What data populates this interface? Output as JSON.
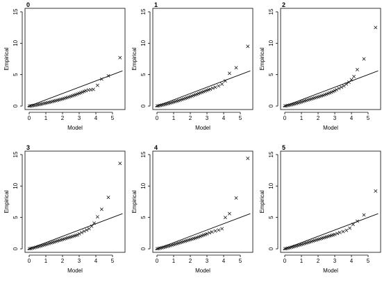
{
  "chart_data": [
    {
      "type": "scatter",
      "title": "0",
      "xlabel": "Model",
      "ylabel": "Empirical",
      "xlim": [
        0,
        5.5
      ],
      "ylim": [
        0,
        15
      ],
      "xticks": [
        0,
        1,
        2,
        3,
        4,
        5
      ],
      "yticks": [
        0,
        5,
        10,
        15
      ],
      "marker": "x",
      "grid": false,
      "reference_line": {
        "slope": 1,
        "intercept": 0
      },
      "points": [
        [
          0.02,
          0.01
        ],
        [
          0.1,
          0.03
        ],
        [
          0.2,
          0.07
        ],
        [
          0.3,
          0.11
        ],
        [
          0.4,
          0.15
        ],
        [
          0.5,
          0.2
        ],
        [
          0.6,
          0.25
        ],
        [
          0.7,
          0.3
        ],
        [
          0.8,
          0.36
        ],
        [
          0.9,
          0.42
        ],
        [
          1.0,
          0.48
        ],
        [
          1.1,
          0.54
        ],
        [
          1.2,
          0.6
        ],
        [
          1.3,
          0.66
        ],
        [
          1.4,
          0.73
        ],
        [
          1.5,
          0.8
        ],
        [
          1.6,
          0.86
        ],
        [
          1.7,
          0.93
        ],
        [
          1.8,
          1.0
        ],
        [
          1.9,
          1.07
        ],
        [
          2.0,
          1.14
        ],
        [
          2.1,
          1.22
        ],
        [
          2.2,
          1.3
        ],
        [
          2.3,
          1.38
        ],
        [
          2.4,
          1.46
        ],
        [
          2.5,
          1.55
        ],
        [
          2.6,
          1.64
        ],
        [
          2.7,
          1.73
        ],
        [
          2.8,
          1.82
        ],
        [
          2.9,
          1.92
        ],
        [
          3.0,
          2.02
        ],
        [
          3.1,
          2.12
        ],
        [
          3.2,
          2.23
        ],
        [
          3.3,
          2.34
        ],
        [
          3.4,
          2.45
        ],
        [
          3.55,
          2.55
        ],
        [
          3.7,
          2.6
        ],
        [
          3.85,
          2.65
        ],
        [
          4.1,
          3.3
        ],
        [
          4.35,
          4.3
        ],
        [
          4.75,
          4.8
        ],
        [
          5.45,
          7.7
        ]
      ]
    },
    {
      "type": "scatter",
      "title": "1",
      "xlabel": "Model",
      "ylabel": "Empirical",
      "xlim": [
        0,
        5.5
      ],
      "ylim": [
        0,
        15
      ],
      "xticks": [
        0,
        1,
        2,
        3,
        4,
        5
      ],
      "yticks": [
        0,
        5,
        10,
        15
      ],
      "marker": "x",
      "grid": false,
      "reference_line": {
        "slope": 1,
        "intercept": 0
      },
      "points": [
        [
          0.02,
          0.02
        ],
        [
          0.1,
          0.05
        ],
        [
          0.2,
          0.1
        ],
        [
          0.3,
          0.16
        ],
        [
          0.4,
          0.22
        ],
        [
          0.5,
          0.28
        ],
        [
          0.6,
          0.35
        ],
        [
          0.7,
          0.42
        ],
        [
          0.8,
          0.49
        ],
        [
          0.9,
          0.56
        ],
        [
          1.0,
          0.64
        ],
        [
          1.1,
          0.72
        ],
        [
          1.2,
          0.8
        ],
        [
          1.3,
          0.88
        ],
        [
          1.4,
          0.96
        ],
        [
          1.5,
          1.05
        ],
        [
          1.6,
          1.14
        ],
        [
          1.7,
          1.22
        ],
        [
          1.8,
          1.31
        ],
        [
          1.9,
          1.4
        ],
        [
          2.0,
          1.5
        ],
        [
          2.1,
          1.6
        ],
        [
          2.2,
          1.7
        ],
        [
          2.3,
          1.8
        ],
        [
          2.4,
          1.9
        ],
        [
          2.5,
          2.0
        ],
        [
          2.6,
          2.1
        ],
        [
          2.7,
          2.2
        ],
        [
          2.8,
          2.3
        ],
        [
          2.9,
          2.4
        ],
        [
          3.0,
          2.5
        ],
        [
          3.1,
          2.6
        ],
        [
          3.2,
          2.7
        ],
        [
          3.35,
          2.85
        ],
        [
          3.5,
          3.0
        ],
        [
          3.7,
          3.2
        ],
        [
          3.9,
          3.5
        ],
        [
          4.1,
          4.0
        ],
        [
          4.35,
          5.2
        ],
        [
          4.75,
          6.1
        ],
        [
          5.45,
          9.5
        ]
      ]
    },
    {
      "type": "scatter",
      "title": "2",
      "xlabel": "Model",
      "ylabel": "Empirical",
      "xlim": [
        0,
        5.5
      ],
      "ylim": [
        0,
        15
      ],
      "xticks": [
        0,
        1,
        2,
        3,
        4,
        5
      ],
      "yticks": [
        0,
        5,
        10,
        15
      ],
      "marker": "x",
      "grid": false,
      "reference_line": {
        "slope": 1,
        "intercept": 0
      },
      "points": [
        [
          0.02,
          0.02
        ],
        [
          0.1,
          0.05
        ],
        [
          0.2,
          0.1
        ],
        [
          0.3,
          0.16
        ],
        [
          0.4,
          0.22
        ],
        [
          0.5,
          0.28
        ],
        [
          0.6,
          0.35
        ],
        [
          0.7,
          0.42
        ],
        [
          0.8,
          0.5
        ],
        [
          0.9,
          0.58
        ],
        [
          1.0,
          0.66
        ],
        [
          1.1,
          0.74
        ],
        [
          1.2,
          0.82
        ],
        [
          1.3,
          0.9
        ],
        [
          1.4,
          0.98
        ],
        [
          1.5,
          1.06
        ],
        [
          1.6,
          1.14
        ],
        [
          1.7,
          1.22
        ],
        [
          1.8,
          1.3
        ],
        [
          1.9,
          1.38
        ],
        [
          2.0,
          1.46
        ],
        [
          2.1,
          1.54
        ],
        [
          2.2,
          1.62
        ],
        [
          2.3,
          1.7
        ],
        [
          2.4,
          1.8
        ],
        [
          2.5,
          1.9
        ],
        [
          2.6,
          2.0
        ],
        [
          2.7,
          2.1
        ],
        [
          2.8,
          2.2
        ],
        [
          2.9,
          2.32
        ],
        [
          3.0,
          2.45
        ],
        [
          3.1,
          2.6
        ],
        [
          3.25,
          2.8
        ],
        [
          3.4,
          3.0
        ],
        [
          3.55,
          3.2
        ],
        [
          3.7,
          3.5
        ],
        [
          3.85,
          3.8
        ],
        [
          4.0,
          4.2
        ],
        [
          4.15,
          4.7
        ],
        [
          4.35,
          5.8
        ],
        [
          4.75,
          7.5
        ],
        [
          5.45,
          12.5
        ]
      ]
    },
    {
      "type": "scatter",
      "title": "3",
      "xlabel": "Model",
      "ylabel": "Empirical",
      "xlim": [
        0,
        5.5
      ],
      "ylim": [
        0,
        15
      ],
      "xticks": [
        0,
        1,
        2,
        3,
        4,
        5
      ],
      "yticks": [
        0,
        5,
        10,
        15
      ],
      "marker": "x",
      "grid": false,
      "reference_line": {
        "slope": 1,
        "intercept": 0
      },
      "points": [
        [
          0.02,
          0.02
        ],
        [
          0.1,
          0.06
        ],
        [
          0.2,
          0.12
        ],
        [
          0.3,
          0.18
        ],
        [
          0.4,
          0.25
        ],
        [
          0.5,
          0.32
        ],
        [
          0.6,
          0.39
        ],
        [
          0.7,
          0.46
        ],
        [
          0.8,
          0.54
        ],
        [
          0.9,
          0.62
        ],
        [
          1.0,
          0.7
        ],
        [
          1.1,
          0.78
        ],
        [
          1.2,
          0.86
        ],
        [
          1.3,
          0.94
        ],
        [
          1.4,
          1.02
        ],
        [
          1.5,
          1.1
        ],
        [
          1.6,
          1.18
        ],
        [
          1.7,
          1.26
        ],
        [
          1.8,
          1.34
        ],
        [
          1.9,
          1.42
        ],
        [
          2.0,
          1.5
        ],
        [
          2.1,
          1.58
        ],
        [
          2.2,
          1.66
        ],
        [
          2.3,
          1.74
        ],
        [
          2.4,
          1.82
        ],
        [
          2.5,
          1.9
        ],
        [
          2.6,
          1.98
        ],
        [
          2.7,
          2.06
        ],
        [
          2.8,
          2.14
        ],
        [
          2.9,
          2.22
        ],
        [
          3.0,
          2.4
        ],
        [
          3.15,
          2.6
        ],
        [
          3.3,
          2.8
        ],
        [
          3.45,
          3.0
        ],
        [
          3.6,
          3.2
        ],
        [
          3.75,
          3.6
        ],
        [
          3.9,
          4.1
        ],
        [
          4.1,
          5.1
        ],
        [
          4.35,
          6.3
        ],
        [
          4.75,
          8.2
        ],
        [
          5.45,
          13.6
        ]
      ]
    },
    {
      "type": "scatter",
      "title": "4",
      "xlabel": "Model",
      "ylabel": "Empirical",
      "xlim": [
        0,
        5.5
      ],
      "ylim": [
        0,
        15
      ],
      "xticks": [
        0,
        1,
        2,
        3,
        4,
        5
      ],
      "yticks": [
        0,
        5,
        10,
        15
      ],
      "marker": "x",
      "grid": false,
      "reference_line": {
        "slope": 1,
        "intercept": 0
      },
      "points": [
        [
          0.02,
          0.02
        ],
        [
          0.1,
          0.06
        ],
        [
          0.2,
          0.12
        ],
        [
          0.3,
          0.18
        ],
        [
          0.4,
          0.24
        ],
        [
          0.5,
          0.31
        ],
        [
          0.6,
          0.38
        ],
        [
          0.7,
          0.45
        ],
        [
          0.8,
          0.52
        ],
        [
          0.9,
          0.6
        ],
        [
          1.0,
          0.68
        ],
        [
          1.1,
          0.76
        ],
        [
          1.2,
          0.84
        ],
        [
          1.3,
          0.92
        ],
        [
          1.4,
          1.0
        ],
        [
          1.5,
          1.08
        ],
        [
          1.6,
          1.16
        ],
        [
          1.7,
          1.24
        ],
        [
          1.8,
          1.32
        ],
        [
          1.9,
          1.4
        ],
        [
          2.0,
          1.48
        ],
        [
          2.1,
          1.56
        ],
        [
          2.2,
          1.64
        ],
        [
          2.3,
          1.72
        ],
        [
          2.4,
          1.8
        ],
        [
          2.5,
          1.9
        ],
        [
          2.6,
          2.0
        ],
        [
          2.7,
          2.1
        ],
        [
          2.8,
          2.2
        ],
        [
          2.9,
          2.3
        ],
        [
          3.0,
          2.4
        ],
        [
          3.15,
          2.55
        ],
        [
          3.3,
          2.7
        ],
        [
          3.5,
          2.85
        ],
        [
          3.7,
          3.0
        ],
        [
          3.9,
          3.2
        ],
        [
          4.1,
          5.0
        ],
        [
          4.35,
          5.6
        ],
        [
          4.75,
          8.1
        ],
        [
          5.45,
          14.4
        ]
      ]
    },
    {
      "type": "scatter",
      "title": "5",
      "xlabel": "Model",
      "ylabel": "Empirical",
      "xlim": [
        0,
        5.5
      ],
      "ylim": [
        0,
        15
      ],
      "xticks": [
        0,
        1,
        2,
        3,
        4,
        5
      ],
      "yticks": [
        0,
        5,
        10,
        15
      ],
      "marker": "x",
      "grid": false,
      "reference_line": {
        "slope": 1,
        "intercept": 0
      },
      "points": [
        [
          0.02,
          0.02
        ],
        [
          0.1,
          0.06
        ],
        [
          0.2,
          0.12
        ],
        [
          0.3,
          0.18
        ],
        [
          0.4,
          0.25
        ],
        [
          0.5,
          0.32
        ],
        [
          0.6,
          0.39
        ],
        [
          0.7,
          0.46
        ],
        [
          0.8,
          0.54
        ],
        [
          0.9,
          0.62
        ],
        [
          1.0,
          0.7
        ],
        [
          1.1,
          0.78
        ],
        [
          1.2,
          0.86
        ],
        [
          1.3,
          0.94
        ],
        [
          1.4,
          1.02
        ],
        [
          1.5,
          1.1
        ],
        [
          1.6,
          1.18
        ],
        [
          1.7,
          1.26
        ],
        [
          1.8,
          1.34
        ],
        [
          1.9,
          1.42
        ],
        [
          2.0,
          1.5
        ],
        [
          2.1,
          1.58
        ],
        [
          2.2,
          1.66
        ],
        [
          2.3,
          1.74
        ],
        [
          2.4,
          1.82
        ],
        [
          2.5,
          1.9
        ],
        [
          2.6,
          1.98
        ],
        [
          2.7,
          2.06
        ],
        [
          2.8,
          2.14
        ],
        [
          2.9,
          2.22
        ],
        [
          3.0,
          2.3
        ],
        [
          3.15,
          2.45
        ],
        [
          3.3,
          2.6
        ],
        [
          3.5,
          2.75
        ],
        [
          3.7,
          2.95
        ],
        [
          3.9,
          3.3
        ],
        [
          4.1,
          3.9
        ],
        [
          4.35,
          4.4
        ],
        [
          4.75,
          5.4
        ],
        [
          5.45,
          9.2
        ]
      ]
    }
  ]
}
